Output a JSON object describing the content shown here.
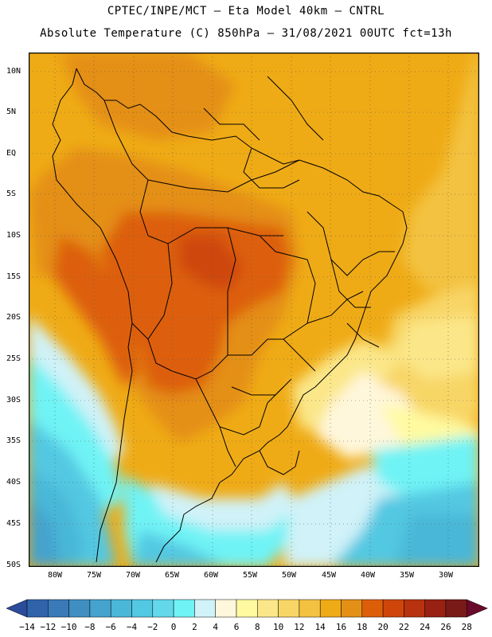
{
  "header": {
    "line1": "CPTEC/INPE/MCT –  Eta Model 40km – CNTRL",
    "line2": "Absolute Temperature (C) 850hPa – 31/08/2021 00UTC fct=13h"
  },
  "map": {
    "lat_labels": [
      "10N",
      "5N",
      "EQ",
      "5S",
      "10S",
      "15S",
      "20S",
      "25S",
      "30S",
      "35S",
      "40S",
      "45S",
      "50S"
    ],
    "lon_labels": [
      "80W",
      "75W",
      "70W",
      "65W",
      "60W",
      "55W",
      "50W",
      "45W",
      "40W",
      "35W",
      "30W"
    ]
  },
  "colorbar": {
    "labels": [
      "-14",
      "-12",
      "-10",
      "-8",
      "-6",
      "-4",
      "-2",
      "0",
      "2",
      "4",
      "6",
      "8",
      "10",
      "12",
      "14",
      "16",
      "18",
      "20",
      "22",
      "24",
      "26",
      "28"
    ],
    "colors": [
      "#2b4b9b",
      "#2f63aa",
      "#3a7ab8",
      "#3f8fc2",
      "#45a3cd",
      "#4ab7d8",
      "#52c8e2",
      "#63d8ea",
      "#6ff3f5",
      "#d0f2f8",
      "#fff7dc",
      "#fffaa0",
      "#fbe789",
      "#f8d666",
      "#f3c241",
      "#efab16",
      "#e48f16",
      "#dd5e08",
      "#ce460a",
      "#b8320f",
      "#982113",
      "#7a1a16",
      "#6a0a2a"
    ]
  }
}
